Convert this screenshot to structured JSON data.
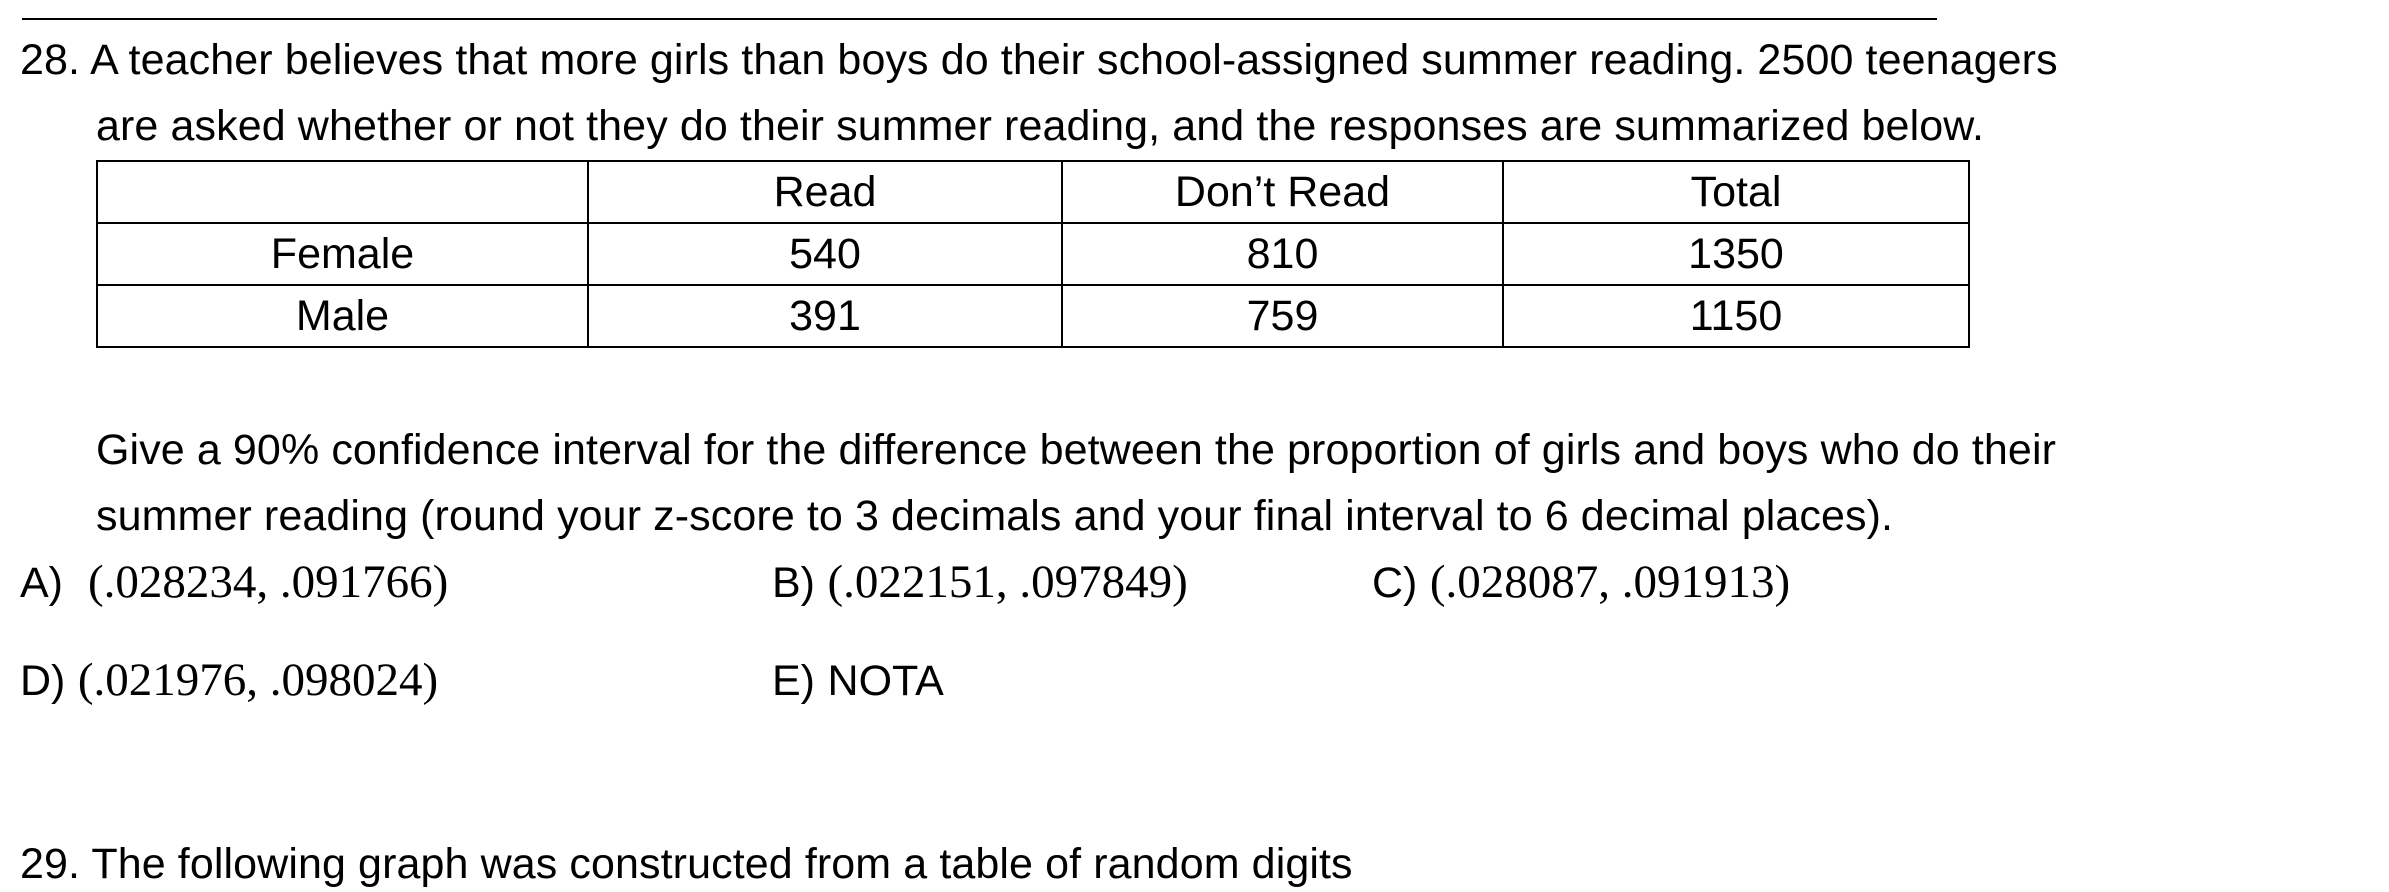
{
  "question": {
    "number": "28.",
    "line1": "A teacher believes that more girls than boys do their school-assigned summer reading. 2500 teenagers",
    "line2": "are asked whether or not they do their summer reading, and the responses are summarized below.",
    "prompt_line1": "Give a 90% confidence interval for the difference between the proportion of girls and boys who do their",
    "prompt_line2": "summer reading (round your z-score to 3 decimals and your final interval to 6 decimal places)."
  },
  "table": {
    "headers": [
      "",
      "Read",
      "Don’t Read",
      "Total"
    ],
    "rows": [
      [
        "Female",
        "540",
        "810",
        "1350"
      ],
      [
        "Male",
        "391",
        "759",
        "1150"
      ]
    ]
  },
  "options": {
    "a": {
      "letter": "A)",
      "value": "(.028234,  .091766)"
    },
    "b": {
      "letter": "B)",
      "value": "(.022151,  .097849)"
    },
    "c": {
      "letter": "C)",
      "value": "(.028087,  .091913)"
    },
    "d": {
      "letter": "D)",
      "value": "(.021976,  .098024)"
    },
    "e": {
      "letter": "E)",
      "value": "NOTA"
    }
  },
  "next_question_partial": "29. The following graph was constructed from a table of random digits"
}
